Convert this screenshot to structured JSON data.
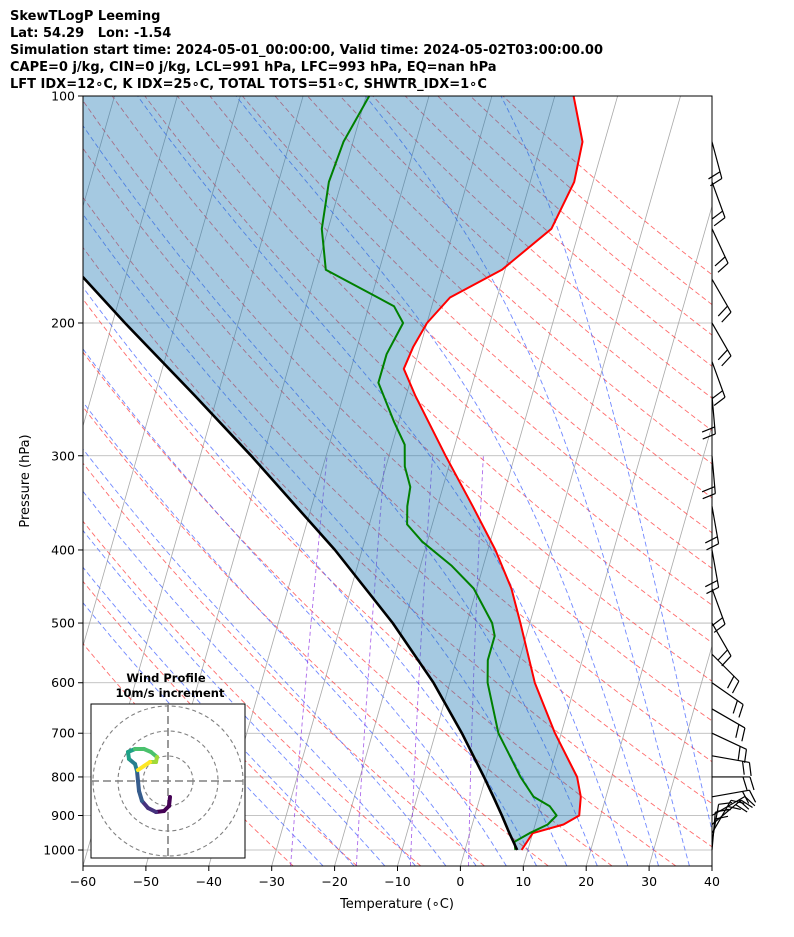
{
  "header": {
    "line1": "SkewTLogP Leeming",
    "line2": "Lat: 54.29   Lon: -1.54",
    "line3": "Simulation start time: 2024-05-01_00:00:00, Valid time: 2024-05-02T03:00:00.00",
    "line4": "CAPE=0 j/kg, CIN=0 j/kg, LCL=991 hPa, LFC=993 hPa, EQ=nan hPa",
    "line5": "LFT IDX=12∘C, K IDX=25∘C, TOTAL TOTS=51∘C, SHWTR_IDX=1∘C"
  },
  "chart_data": {
    "type": "line",
    "subtype": "skew-t log-p",
    "xlabel": "Temperature (∘C)",
    "ylabel": "Pressure (hPa)",
    "xlim": [
      -60,
      40
    ],
    "ylim": [
      1050,
      100
    ],
    "y_scale": "log",
    "grid": true,
    "x_ticks": [
      -60,
      -50,
      -40,
      -30,
      -20,
      -10,
      0,
      10,
      20,
      30,
      40
    ],
    "x_tick_labels": [
      "−60",
      "−50",
      "−40",
      "−30",
      "−20",
      "−10",
      "0",
      "10",
      "20",
      "30",
      "40"
    ],
    "y_ticks": [
      1000,
      900,
      800,
      700,
      600,
      500,
      400,
      300,
      200,
      100
    ],
    "y_tick_labels": [
      "1000",
      "900",
      "800",
      "700",
      "600",
      "500",
      "400",
      "300",
      "200",
      "100"
    ],
    "series": [
      {
        "role": "temperature",
        "color": "#ff0000",
        "points": [
          [
            1000,
            9.0
          ],
          [
            950,
            10.0
          ],
          [
            925,
            14.5
          ],
          [
            900,
            16.6
          ],
          [
            850,
            16.0
          ],
          [
            800,
            14.5
          ],
          [
            700,
            9.0
          ],
          [
            600,
            3.5
          ],
          [
            500,
            -1.5
          ],
          [
            450,
            -4.5
          ],
          [
            400,
            -8.8
          ],
          [
            350,
            -14.4
          ],
          [
            300,
            -21.0
          ],
          [
            250,
            -28.5
          ],
          [
            230,
            -31.6
          ],
          [
            215,
            -31.1
          ],
          [
            200,
            -30.0
          ],
          [
            185,
            -27.5
          ],
          [
            170,
            -20.5
          ],
          [
            150,
            -14.5
          ],
          [
            130,
            -13.0
          ],
          [
            115,
            -13.5
          ],
          [
            100,
            -17.0
          ]
        ]
      },
      {
        "role": "dewpoint",
        "color": "#008000",
        "points": [
          [
            1000,
            8.0
          ],
          [
            975,
            7.5
          ],
          [
            950,
            9.5
          ],
          [
            925,
            12.0
          ],
          [
            900,
            13.0
          ],
          [
            875,
            11.5
          ],
          [
            850,
            8.5
          ],
          [
            800,
            5.5
          ],
          [
            700,
            0.0
          ],
          [
            600,
            -4.0
          ],
          [
            560,
            -5.0
          ],
          [
            520,
            -5.0
          ],
          [
            500,
            -6.0
          ],
          [
            450,
            -10.5
          ],
          [
            420,
            -15.0
          ],
          [
            390,
            -20.8
          ],
          [
            370,
            -24.0
          ],
          [
            350,
            -24.8
          ],
          [
            330,
            -25.2
          ],
          [
            310,
            -27.0
          ],
          [
            290,
            -28.0
          ],
          [
            270,
            -30.8
          ],
          [
            240,
            -35.0
          ],
          [
            220,
            -35.0
          ],
          [
            200,
            -33.8
          ],
          [
            190,
            -36.0
          ],
          [
            170,
            -48.5
          ],
          [
            150,
            -51.0
          ],
          [
            130,
            -52.0
          ],
          [
            115,
            -51.5
          ],
          [
            100,
            -49.5
          ]
        ]
      },
      {
        "role": "parcel",
        "color": "#000000",
        "points": [
          [
            1000,
            8.3
          ],
          [
            950,
            6.3
          ],
          [
            900,
            4.3
          ],
          [
            850,
            2.1
          ],
          [
            800,
            -0.3
          ],
          [
            700,
            -5.8
          ],
          [
            600,
            -12.6
          ],
          [
            500,
            -21.8
          ],
          [
            400,
            -34.3
          ],
          [
            300,
            -51.9
          ],
          [
            250,
            -63.5
          ],
          [
            200,
            -78.0
          ],
          [
            150,
            -96.0
          ],
          [
            120,
            -110.0
          ],
          [
            100,
            -122.0
          ]
        ]
      }
    ],
    "wind_barbs_at": [
      1000,
      975,
      950,
      925,
      900,
      850,
      800,
      750,
      700,
      650,
      600,
      550,
      500,
      450,
      400,
      350,
      300,
      250,
      225,
      200,
      175,
      150,
      130,
      115
    ],
    "hodograph": {
      "title": "Wind Profile",
      "subtitle": "10m/s increment"
    }
  }
}
